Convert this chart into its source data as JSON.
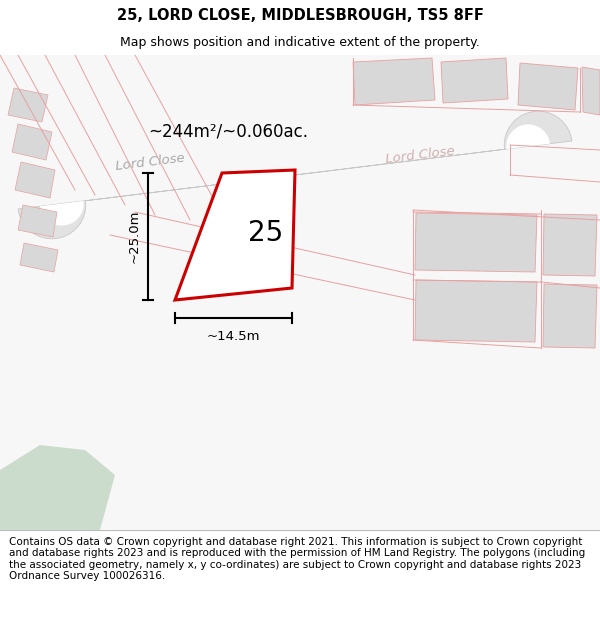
{
  "title": "25, LORD CLOSE, MIDDLESBROUGH, TS5 8FF",
  "subtitle": "Map shows position and indicative extent of the property.",
  "area_label": "~244m²/~0.060ac.",
  "width_label": "~14.5m",
  "height_label": "~25.0m",
  "number_label": "25",
  "footer": "Contains OS data © Crown copyright and database right 2021. This information is subject to Crown copyright and database rights 2023 and is reproduced with the permission of HM Land Registry. The polygons (including the associated geometry, namely x, y co-ordinates) are subject to Crown copyright and database rights 2023 Ordnance Survey 100026316.",
  "title_fontsize": 10.5,
  "subtitle_fontsize": 9,
  "footer_fontsize": 7.5,
  "map_bg": "#f7f7f7",
  "white": "#ffffff",
  "road_gray": "#e2e2e2",
  "road_edge": "#c8c8c8",
  "block_gray": "#d8d8d8",
  "pink_line": "#e8a0a0",
  "red_line": "#cc0000",
  "green_fill": "#ccdccc",
  "label_gray": "#aaaaaa",
  "label_pink": "#d0b0b0"
}
